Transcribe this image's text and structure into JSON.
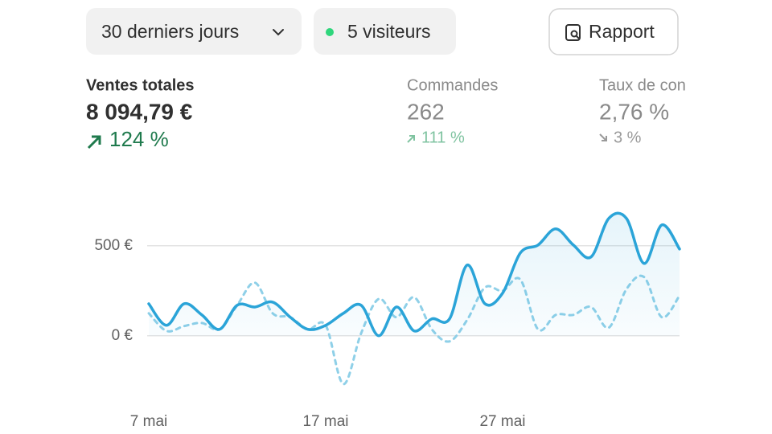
{
  "toolbar": {
    "date_range": "30 derniers jours",
    "visitors": "5 visiteurs",
    "report": "Rapport"
  },
  "metrics": [
    {
      "label": "Ventes totales",
      "value": "8 094,79 €",
      "change": "124 %"
    },
    {
      "label": "Commandes",
      "value": "262",
      "change": "111 %"
    },
    {
      "label": "Taux de con",
      "value": "2,76 %",
      "change": "3 %"
    }
  ],
  "chart_data": {
    "type": "line",
    "categories": [
      "7 mai",
      null,
      null,
      null,
      null,
      null,
      null,
      null,
      null,
      null,
      "17 mai",
      null,
      null,
      null,
      null,
      null,
      null,
      null,
      null,
      null,
      "27 mai",
      null,
      null,
      null,
      null,
      null,
      null,
      null,
      null,
      null,
      null
    ],
    "series": [
      {
        "color": "#2ba4d8",
        "style": "solid",
        "values": [
          178,
          58,
          178,
          116,
          36,
          170,
          160,
          187,
          103,
          36,
          58,
          125,
          170,
          0,
          160,
          27,
          94,
          94,
          393,
          178,
          237,
          460,
          504,
          594,
          504,
          438,
          652,
          652,
          402,
          616,
          482
        ]
      },
      {
        "color": "#8fd0e8",
        "style": "dashed",
        "values": [
          125,
          27,
          54,
          71,
          36,
          170,
          295,
          125,
          103,
          36,
          58,
          -268,
          13,
          205,
          103,
          214,
          36,
          -31,
          89,
          268,
          250,
          313,
          36,
          116,
          116,
          160,
          45,
          259,
          326,
          103,
          223
        ]
      }
    ],
    "ylim": [
      -300,
      700
    ],
    "yticks": [
      {
        "value": 0,
        "label": "0 €"
      },
      {
        "value": 500,
        "label": "500 €"
      }
    ],
    "grid": true
  }
}
